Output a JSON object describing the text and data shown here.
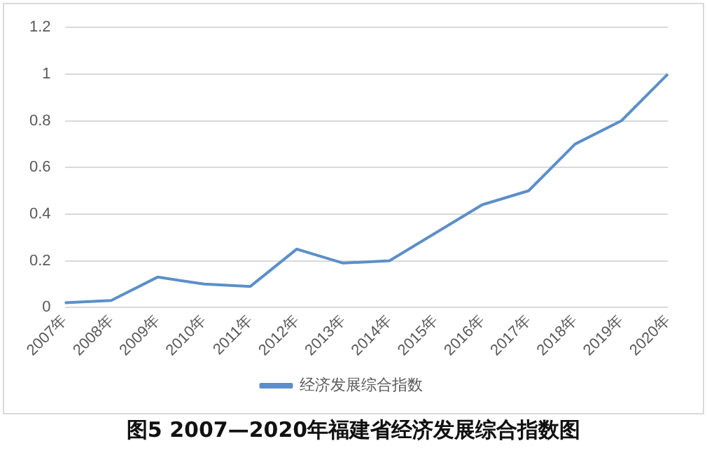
{
  "chart_data": {
    "type": "line",
    "title": "图5 2007—2020年福建省经济发展综合指数图",
    "categories": [
      "2007年",
      "2008年",
      "2009年",
      "2010年",
      "2011年",
      "2012年",
      "2013年",
      "2014年",
      "2015年",
      "2016年",
      "2017年",
      "2018年",
      "2019年",
      "2020年"
    ],
    "series": [
      {
        "name": "经济发展综合指数",
        "color": "#5b8fc9",
        "values": [
          0.02,
          0.03,
          0.13,
          0.1,
          0.09,
          0.25,
          0.19,
          0.2,
          0.32,
          0.44,
          0.5,
          0.7,
          0.8,
          1.0
        ]
      }
    ],
    "ylim": [
      0,
      1.2
    ],
    "yticks": [
      0,
      0.2,
      0.4,
      0.6,
      0.8,
      1,
      1.2
    ],
    "grid": "y",
    "legend": "bottom",
    "marker": "none",
    "line_style": "solid"
  }
}
